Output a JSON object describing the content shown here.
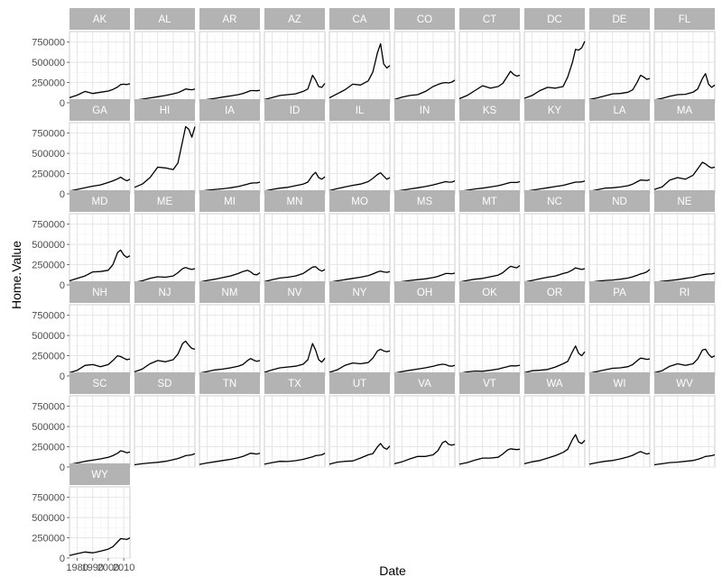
{
  "chart_data": {
    "type": "line",
    "facet_layout": "wrap",
    "xlabel": "Date",
    "ylabel": "Home.Value",
    "xlim": [
      1975,
      2014
    ],
    "ylim": [
      0,
      880000
    ],
    "y_ticks": [
      0,
      250000,
      500000,
      750000
    ],
    "y_tick_labels": [
      "0",
      "250000",
      "500000",
      "750000"
    ],
    "x_ticks": [
      1980,
      1990,
      2000,
      2010
    ],
    "x_tick_labels": [
      "1980",
      "1990",
      "2000",
      "2010"
    ],
    "x_tick_labels_shown_under": "WY",
    "grid": true,
    "theme_colors": {
      "strip": "#b3b3b3",
      "strip_text": "#ffffff",
      "line": "#000000",
      "grid": "#e3e3e3",
      "panel_border": "#c2c2c2"
    },
    "x": [
      1975,
      1980,
      1985,
      1990,
      1995,
      2000,
      2003,
      2006,
      2008,
      2010,
      2012,
      2014
    ],
    "panels": [
      {
        "state": "AK",
        "values": [
          62000,
          95000,
          140000,
          115000,
          130000,
          145000,
          165000,
          195000,
          225000,
          230000,
          225000,
          235000
        ]
      },
      {
        "state": "AL",
        "values": [
          30000,
          45000,
          60000,
          75000,
          90000,
          110000,
          125000,
          150000,
          170000,
          165000,
          160000,
          170000
        ]
      },
      {
        "state": "AR",
        "values": [
          25000,
          40000,
          55000,
          70000,
          85000,
          100000,
          115000,
          135000,
          150000,
          150000,
          148000,
          155000
        ]
      },
      {
        "state": "AZ",
        "values": [
          40000,
          65000,
          90000,
          100000,
          110000,
          140000,
          170000,
          340000,
          280000,
          200000,
          190000,
          240000
        ]
      },
      {
        "state": "CA",
        "values": [
          60000,
          110000,
          160000,
          230000,
          220000,
          270000,
          380000,
          620000,
          730000,
          480000,
          430000,
          460000
        ]
      },
      {
        "state": "CO",
        "values": [
          40000,
          70000,
          90000,
          100000,
          140000,
          200000,
          225000,
          245000,
          250000,
          245000,
          255000,
          280000
        ]
      },
      {
        "state": "CT",
        "values": [
          50000,
          90000,
          150000,
          210000,
          180000,
          200000,
          240000,
          330000,
          390000,
          350000,
          330000,
          340000
        ]
      },
      {
        "state": "DC",
        "values": [
          55000,
          90000,
          150000,
          190000,
          180000,
          200000,
          320000,
          500000,
          660000,
          650000,
          680000,
          760000
        ]
      },
      {
        "state": "DE",
        "values": [
          40000,
          60000,
          85000,
          110000,
          115000,
          130000,
          160000,
          260000,
          340000,
          320000,
          290000,
          300000
        ]
      },
      {
        "state": "FL",
        "values": [
          35000,
          55000,
          80000,
          100000,
          105000,
          130000,
          170000,
          300000,
          360000,
          230000,
          190000,
          220000
        ]
      },
      {
        "state": "GA",
        "values": [
          35000,
          55000,
          75000,
          95000,
          110000,
          140000,
          160000,
          185000,
          205000,
          180000,
          160000,
          180000
        ]
      },
      {
        "state": "HI",
        "values": [
          80000,
          120000,
          200000,
          330000,
          320000,
          300000,
          380000,
          650000,
          830000,
          800000,
          700000,
          830000
        ]
      },
      {
        "state": "IA",
        "values": [
          30000,
          45000,
          55000,
          62000,
          75000,
          90000,
          105000,
          120000,
          130000,
          135000,
          135000,
          145000
        ]
      },
      {
        "state": "ID",
        "values": [
          35000,
          55000,
          70000,
          80000,
          100000,
          120000,
          145000,
          230000,
          265000,
          200000,
          180000,
          210000
        ]
      },
      {
        "state": "IL",
        "values": [
          40000,
          65000,
          85000,
          105000,
          120000,
          150000,
          190000,
          240000,
          260000,
          220000,
          180000,
          200000
        ]
      },
      {
        "state": "IN",
        "values": [
          30000,
          45000,
          60000,
          75000,
          90000,
          110000,
          125000,
          140000,
          150000,
          145000,
          145000,
          160000
        ]
      },
      {
        "state": "KS",
        "values": [
          30000,
          45000,
          60000,
          70000,
          85000,
          100000,
          115000,
          130000,
          140000,
          140000,
          140000,
          150000
        ]
      },
      {
        "state": "KY",
        "values": [
          30000,
          45000,
          60000,
          75000,
          90000,
          105000,
          120000,
          135000,
          145000,
          145000,
          148000,
          158000
        ]
      },
      {
        "state": "LA",
        "values": [
          30000,
          50000,
          70000,
          75000,
          85000,
          100000,
          120000,
          150000,
          170000,
          168000,
          165000,
          175000
        ]
      },
      {
        "state": "MA",
        "values": [
          55000,
          85000,
          170000,
          200000,
          180000,
          230000,
          310000,
          390000,
          370000,
          340000,
          320000,
          330000
        ]
      },
      {
        "state": "MD",
        "values": [
          50000,
          80000,
          110000,
          160000,
          165000,
          180000,
          250000,
          400000,
          430000,
          370000,
          340000,
          360000
        ]
      },
      {
        "state": "ME",
        "values": [
          30000,
          50000,
          80000,
          100000,
          95000,
          110000,
          150000,
          200000,
          215000,
          200000,
          190000,
          200000
        ]
      },
      {
        "state": "MI",
        "values": [
          35000,
          55000,
          70000,
          90000,
          110000,
          140000,
          165000,
          180000,
          160000,
          130000,
          125000,
          150000
        ]
      },
      {
        "state": "MN",
        "values": [
          40000,
          65000,
          85000,
          95000,
          110000,
          140000,
          180000,
          220000,
          225000,
          190000,
          170000,
          190000
        ]
      },
      {
        "state": "MO",
        "values": [
          32000,
          50000,
          65000,
          80000,
          95000,
          115000,
          135000,
          160000,
          170000,
          160000,
          155000,
          165000
        ]
      },
      {
        "state": "MS",
        "values": [
          25000,
          40000,
          55000,
          65000,
          75000,
          90000,
          105000,
          125000,
          140000,
          140000,
          138000,
          145000
        ]
      },
      {
        "state": "MT",
        "values": [
          35000,
          55000,
          70000,
          80000,
          100000,
          120000,
          150000,
          200000,
          230000,
          220000,
          210000,
          240000
        ]
      },
      {
        "state": "NC",
        "values": [
          35000,
          55000,
          75000,
          95000,
          110000,
          140000,
          155000,
          185000,
          210000,
          200000,
          190000,
          200000
        ]
      },
      {
        "state": "ND",
        "values": [
          30000,
          45000,
          55000,
          60000,
          70000,
          85000,
          100000,
          120000,
          135000,
          145000,
          160000,
          190000
        ]
      },
      {
        "state": "NE",
        "values": [
          30000,
          45000,
          55000,
          65000,
          80000,
          95000,
          110000,
          125000,
          130000,
          135000,
          135000,
          145000
        ]
      },
      {
        "state": "NH",
        "values": [
          40000,
          70000,
          130000,
          140000,
          115000,
          140000,
          190000,
          250000,
          240000,
          220000,
          200000,
          210000
        ]
      },
      {
        "state": "NJ",
        "values": [
          50000,
          85000,
          150000,
          190000,
          175000,
          200000,
          270000,
          400000,
          430000,
          380000,
          340000,
          330000
        ]
      },
      {
        "state": "NM",
        "values": [
          35000,
          55000,
          75000,
          85000,
          100000,
          120000,
          140000,
          190000,
          215000,
          195000,
          180000,
          190000
        ]
      },
      {
        "state": "NV",
        "values": [
          45000,
          75000,
          100000,
          110000,
          120000,
          145000,
          200000,
          400000,
          320000,
          200000,
          170000,
          220000
        ]
      },
      {
        "state": "NY",
        "values": [
          45000,
          75000,
          130000,
          160000,
          150000,
          165000,
          220000,
          310000,
          330000,
          310000,
          300000,
          310000
        ]
      },
      {
        "state": "OH",
        "values": [
          35000,
          55000,
          70000,
          85000,
          100000,
          120000,
          135000,
          145000,
          140000,
          125000,
          120000,
          130000
        ]
      },
      {
        "state": "OK",
        "values": [
          30000,
          50000,
          60000,
          58000,
          70000,
          85000,
          100000,
          115000,
          125000,
          125000,
          125000,
          132000
        ]
      },
      {
        "state": "OR",
        "values": [
          40000,
          65000,
          70000,
          80000,
          110000,
          150000,
          180000,
          300000,
          370000,
          280000,
          250000,
          300000
        ]
      },
      {
        "state": "PA",
        "values": [
          35000,
          55000,
          75000,
          95000,
          100000,
          115000,
          140000,
          190000,
          220000,
          215000,
          205000,
          210000
        ]
      },
      {
        "state": "RI",
        "values": [
          40000,
          65000,
          120000,
          150000,
          130000,
          150000,
          210000,
          320000,
          330000,
          270000,
          230000,
          250000
        ]
      },
      {
        "state": "SC",
        "values": [
          32000,
          50000,
          70000,
          85000,
          100000,
          120000,
          140000,
          170000,
          200000,
          190000,
          175000,
          185000
        ]
      },
      {
        "state": "SD",
        "values": [
          28000,
          40000,
          50000,
          58000,
          70000,
          90000,
          105000,
          125000,
          140000,
          145000,
          150000,
          165000
        ]
      },
      {
        "state": "TN",
        "values": [
          32000,
          50000,
          65000,
          80000,
          95000,
          115000,
          130000,
          155000,
          170000,
          165000,
          160000,
          170000
        ]
      },
      {
        "state": "TX",
        "values": [
          35000,
          55000,
          70000,
          68000,
          78000,
          95000,
          110000,
          125000,
          140000,
          145000,
          150000,
          170000
        ]
      },
      {
        "state": "UT",
        "values": [
          35000,
          60000,
          70000,
          75000,
          110000,
          150000,
          165000,
          250000,
          290000,
          240000,
          220000,
          260000
        ]
      },
      {
        "state": "VA",
        "values": [
          40000,
          65000,
          100000,
          130000,
          130000,
          150000,
          200000,
          300000,
          320000,
          280000,
          270000,
          280000
        ]
      },
      {
        "state": "VT",
        "values": [
          35000,
          55000,
          85000,
          110000,
          110000,
          120000,
          160000,
          210000,
          225000,
          220000,
          215000,
          220000
        ]
      },
      {
        "state": "WA",
        "values": [
          40000,
          65000,
          80000,
          110000,
          140000,
          180000,
          220000,
          340000,
          400000,
          310000,
          290000,
          330000
        ]
      },
      {
        "state": "WI",
        "values": [
          35000,
          55000,
          70000,
          80000,
          100000,
          125000,
          145000,
          175000,
          190000,
          175000,
          160000,
          170000
        ]
      },
      {
        "state": "WV",
        "values": [
          28000,
          40000,
          55000,
          60000,
          70000,
          80000,
          95000,
          115000,
          130000,
          135000,
          140000,
          150000
        ]
      },
      {
        "state": "WY",
        "values": [
          32000,
          55000,
          75000,
          65000,
          85000,
          110000,
          140000,
          200000,
          240000,
          235000,
          230000,
          250000
        ]
      }
    ]
  }
}
